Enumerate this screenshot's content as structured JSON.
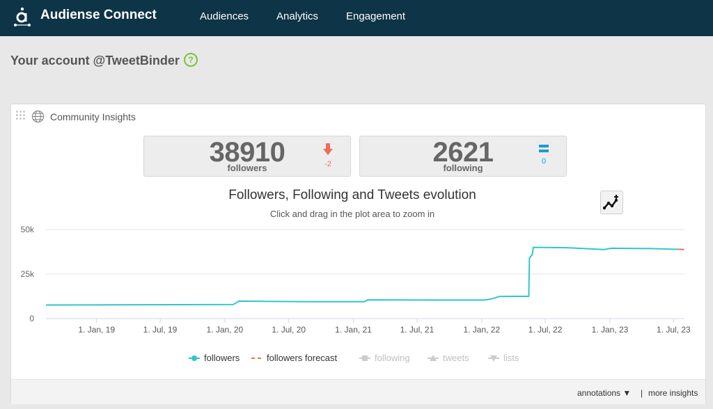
{
  "app": {
    "name": "Audiense Connect",
    "logo_icon": "audiense-logo-icon"
  },
  "nav": [
    {
      "label": "Audiences"
    },
    {
      "label": "Analytics"
    },
    {
      "label": "Engagement"
    }
  ],
  "account": {
    "title": "Your account @TweetBinder",
    "help_glyph": "?"
  },
  "panel": {
    "title": "Community Insights",
    "stats": [
      {
        "value": "38910",
        "label": "followers",
        "change": "-2",
        "change_icon": "arrow-down-icon",
        "change_color": "#f26b5b"
      },
      {
        "value": "2621",
        "label": "following",
        "change": "0",
        "change_icon": "equals-icon",
        "change_color": "#1a9bd7"
      }
    ],
    "footer": {
      "annotations": "annotations ▼",
      "separator": "|",
      "more": "more insights"
    }
  },
  "chart_data": {
    "type": "line",
    "title": "Followers, Following and Tweets evolution",
    "subtitle": "Click and drag in the plot area to zoom in",
    "y_ticks": [
      "0",
      "25k",
      "50k"
    ],
    "ylim": [
      0,
      50000
    ],
    "x_range": [
      "2018-08-10",
      "2023-08-01"
    ],
    "x_ticks": [
      {
        "date": "2019-01-01",
        "label": "1. Jan, 19"
      },
      {
        "date": "2019-07-01",
        "label": "1. Jul, 19"
      },
      {
        "date": "2020-01-01",
        "label": "1. Jan, 20"
      },
      {
        "date": "2020-07-01",
        "label": "1. Jul, 20"
      },
      {
        "date": "2021-01-01",
        "label": "1. Jan, 21"
      },
      {
        "date": "2021-07-01",
        "label": "1. Jul, 21"
      },
      {
        "date": "2022-01-01",
        "label": "1. Jan, 22"
      },
      {
        "date": "2022-07-01",
        "label": "1. Jul, 22"
      },
      {
        "date": "2023-01-01",
        "label": "1. Jan, 23"
      },
      {
        "date": "2023-07-01",
        "label": "1. Jul, 23"
      }
    ],
    "grid": "horizontal",
    "legend_position": "bottom-center",
    "series": [
      {
        "name": "followers",
        "color": "#2ec7c9",
        "visible": true,
        "points": [
          [
            "2018-08-10",
            7600
          ],
          [
            "2019-02-01",
            7700
          ],
          [
            "2019-08-01",
            7800
          ],
          [
            "2020-01-25",
            7900
          ],
          [
            "2020-02-10",
            9800
          ],
          [
            "2020-09-01",
            9500
          ],
          [
            "2021-02-01",
            9500
          ],
          [
            "2021-02-10",
            10500
          ],
          [
            "2021-09-01",
            10400
          ],
          [
            "2022-01-10",
            10400
          ],
          [
            "2022-02-01",
            11200
          ],
          [
            "2022-02-20",
            12400
          ],
          [
            "2022-04-10",
            12500
          ],
          [
            "2022-05-15",
            12500
          ],
          [
            "2022-05-17",
            34000
          ],
          [
            "2022-05-25",
            36000
          ],
          [
            "2022-05-28",
            40000
          ],
          [
            "2022-09-01",
            39800
          ],
          [
            "2022-12-15",
            38800
          ],
          [
            "2023-01-05",
            39500
          ],
          [
            "2023-05-01",
            39300
          ],
          [
            "2023-07-05",
            38900
          ],
          [
            "2023-07-15",
            38910
          ]
        ]
      },
      {
        "name": "followers forecast",
        "color": "#f26b5b",
        "visible": true,
        "points": [
          [
            "2023-07-15",
            38910
          ],
          [
            "2023-07-31",
            38800
          ]
        ]
      },
      {
        "name": "following",
        "color": "#cccccc",
        "visible": false,
        "points": []
      },
      {
        "name": "tweets",
        "color": "#cccccc",
        "visible": false,
        "points": []
      },
      {
        "name": "lists",
        "color": "#cccccc",
        "visible": false,
        "points": []
      }
    ]
  }
}
